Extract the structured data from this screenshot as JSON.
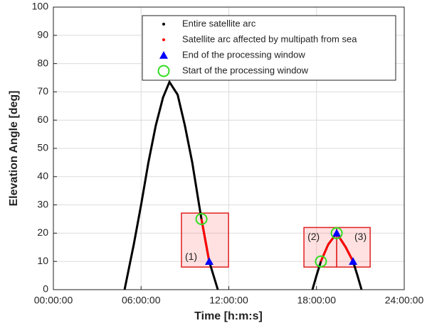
{
  "chart_data": {
    "type": "line",
    "xlabel": "Time [h:m:s]",
    "ylabel": "Elevation Angle [deg]",
    "xlim": [
      0,
      24
    ],
    "ylim": [
      0,
      100
    ],
    "xticks": [
      {
        "value": 0,
        "label": "00:00:00"
      },
      {
        "value": 6,
        "label": "06:00:00"
      },
      {
        "value": 12,
        "label": "12:00:00"
      },
      {
        "value": 18,
        "label": "18:00:00"
      },
      {
        "value": 24,
        "label": "24:00:00"
      }
    ],
    "yticks": [
      0,
      10,
      20,
      30,
      40,
      50,
      60,
      70,
      80,
      90,
      100
    ],
    "grid": true,
    "legend": "upper right",
    "series": [
      {
        "name": "Entire satellite arc",
        "color": "#000000",
        "style": "line",
        "x": [
          4.87,
          5.5,
          6,
          6.5,
          7,
          7.5,
          7.94,
          8.5,
          9,
          9.5,
          10,
          10.13,
          10.66,
          11.25,
          null,
          17.72,
          18,
          18.3,
          18.8,
          19.38,
          20,
          20.5,
          20.8,
          21.08
        ],
        "values": [
          0,
          16,
          30,
          45,
          58,
          68,
          73.5,
          69,
          58,
          45,
          29,
          25,
          10,
          0,
          null,
          0,
          5,
          10,
          16,
          20,
          15,
          10,
          5,
          0
        ]
      },
      {
        "name": "Satellite arc affected by multipath from sea",
        "color": "#ff0000",
        "style": "line",
        "x": [
          10.13,
          10.5,
          10.66,
          null,
          18.3,
          18.8,
          19.38,
          20,
          20.5
        ],
        "values": [
          25,
          14.5,
          10,
          null,
          10,
          16,
          20,
          15,
          10
        ]
      },
      {
        "name": "End of the processing window",
        "color": "#0000ff",
        "style": "triangle",
        "x": [
          10.66,
          19.38,
          20.5
        ],
        "values": [
          10,
          20,
          10
        ]
      },
      {
        "name": "Start of the processing window",
        "color": "#33dd22",
        "style": "circle",
        "x": [
          10.13,
          18.3,
          19.38
        ],
        "values": [
          25,
          10,
          20
        ]
      }
    ],
    "annotations": [
      {
        "text": "(1)",
        "x": [
          8.76,
          11.98
        ],
        "y": [
          8,
          27.1
        ]
      },
      {
        "text": "(2)",
        "x": [
          17.14,
          19.38
        ],
        "y": [
          8,
          22
        ]
      },
      {
        "text": "(3)",
        "x": [
          19.38,
          21.67
        ],
        "y": [
          8,
          22
        ]
      }
    ]
  }
}
